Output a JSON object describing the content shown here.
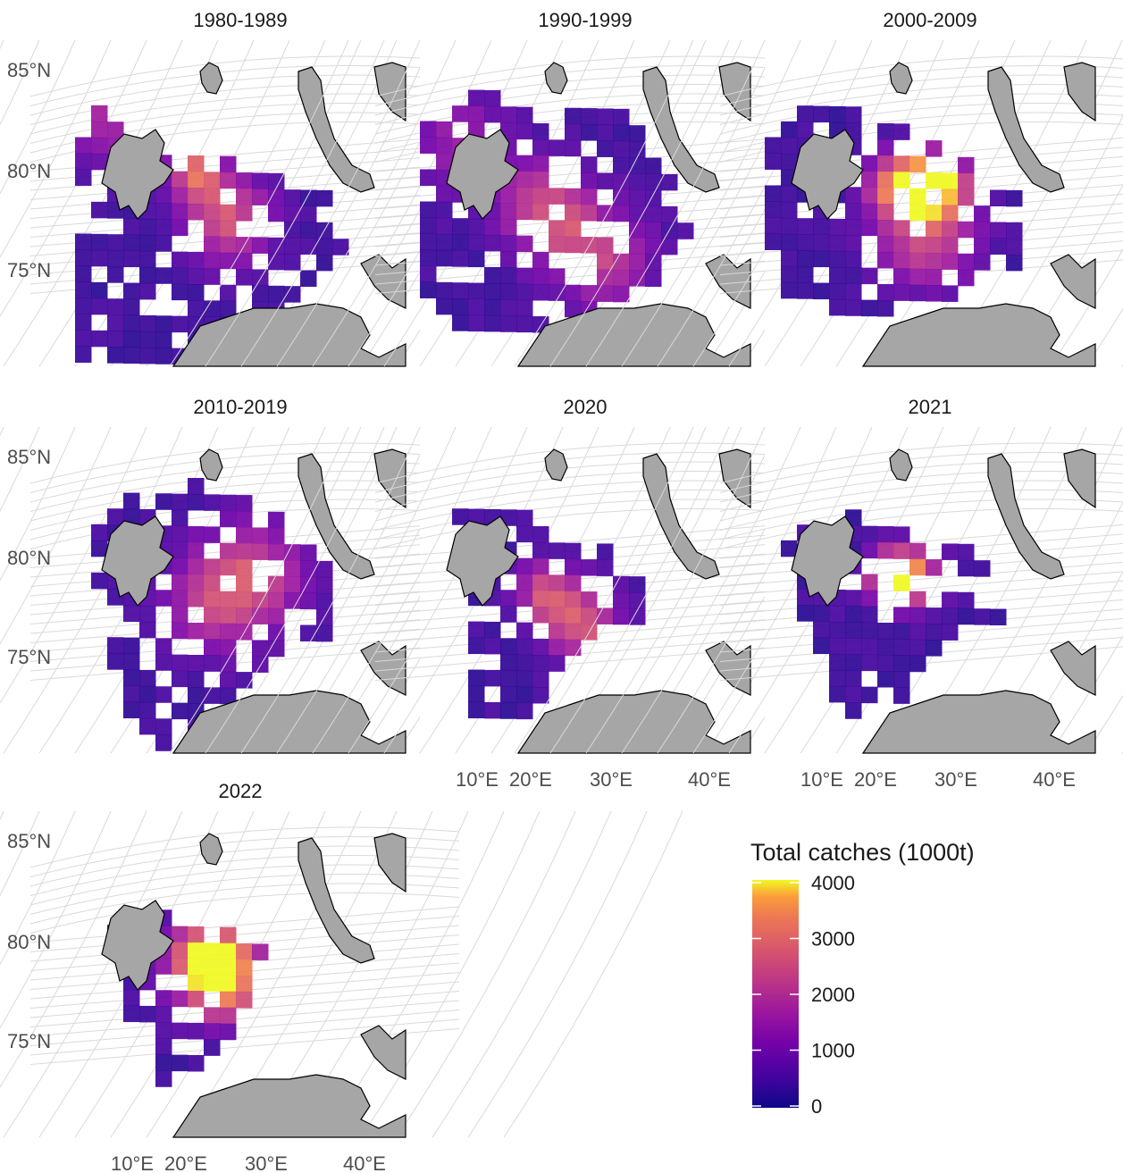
{
  "figure": {
    "panels": [
      {
        "title": "1980-1989"
      },
      {
        "title": "1990-1999"
      },
      {
        "title": "2000-2009"
      },
      {
        "title": "2010-2019"
      },
      {
        "title": "2020"
      },
      {
        "title": "2021"
      },
      {
        "title": "2022"
      }
    ],
    "lat_labels": [
      "85°N",
      "80°N",
      "75°N"
    ],
    "lon_labels": [
      "10°E",
      "20°E",
      "30°E",
      "40°E"
    ],
    "legend": {
      "title": "Total catches (1000t)",
      "ticks": [
        "0",
        "1000",
        "2000",
        "3000",
        "4000"
      ],
      "range": [
        0,
        4000
      ],
      "colormap": "plasma"
    },
    "colors": {
      "land": "#a6a6a6",
      "coast": "#000000",
      "grid": "#d9d9d9",
      "low": "#3b2c9e",
      "mid": "#8a2dac",
      "high": "#e5635f",
      "max": "#f7e225"
    }
  }
}
